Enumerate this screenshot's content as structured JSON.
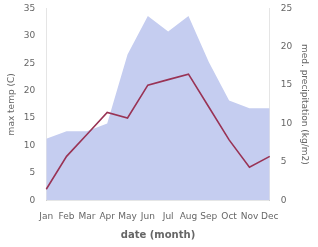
{
  "chart_data": {
    "type": "line",
    "xlabel": "date (month)",
    "ylabel": "max temp (C)",
    "y2label": "med. precipitation (kg/m2)",
    "categories": [
      "Jan",
      "Feb",
      "Mar",
      "Apr",
      "May",
      "Jun",
      "Jul",
      "Aug",
      "Sep",
      "Oct",
      "Nov",
      "Dec"
    ],
    "series": [
      {
        "type": "area",
        "axis": "y2",
        "color": "#c5cdf0",
        "values": [
          8,
          9,
          9,
          10,
          19,
          24,
          22,
          24,
          18,
          13,
          12,
          12
        ]
      },
      {
        "type": "line",
        "color": "#993355",
        "values": [
          2,
          8,
          12,
          16,
          15,
          21,
          22,
          23,
          17,
          11,
          6,
          8
        ]
      }
    ],
    "ylim": [
      0,
      35
    ],
    "yticks": [
      0,
      5,
      10,
      15,
      20,
      25,
      30,
      35
    ],
    "y2lim": [
      0,
      25
    ],
    "y2ticks": [
      0,
      5,
      10,
      15,
      20,
      25
    ],
    "grid": false
  }
}
